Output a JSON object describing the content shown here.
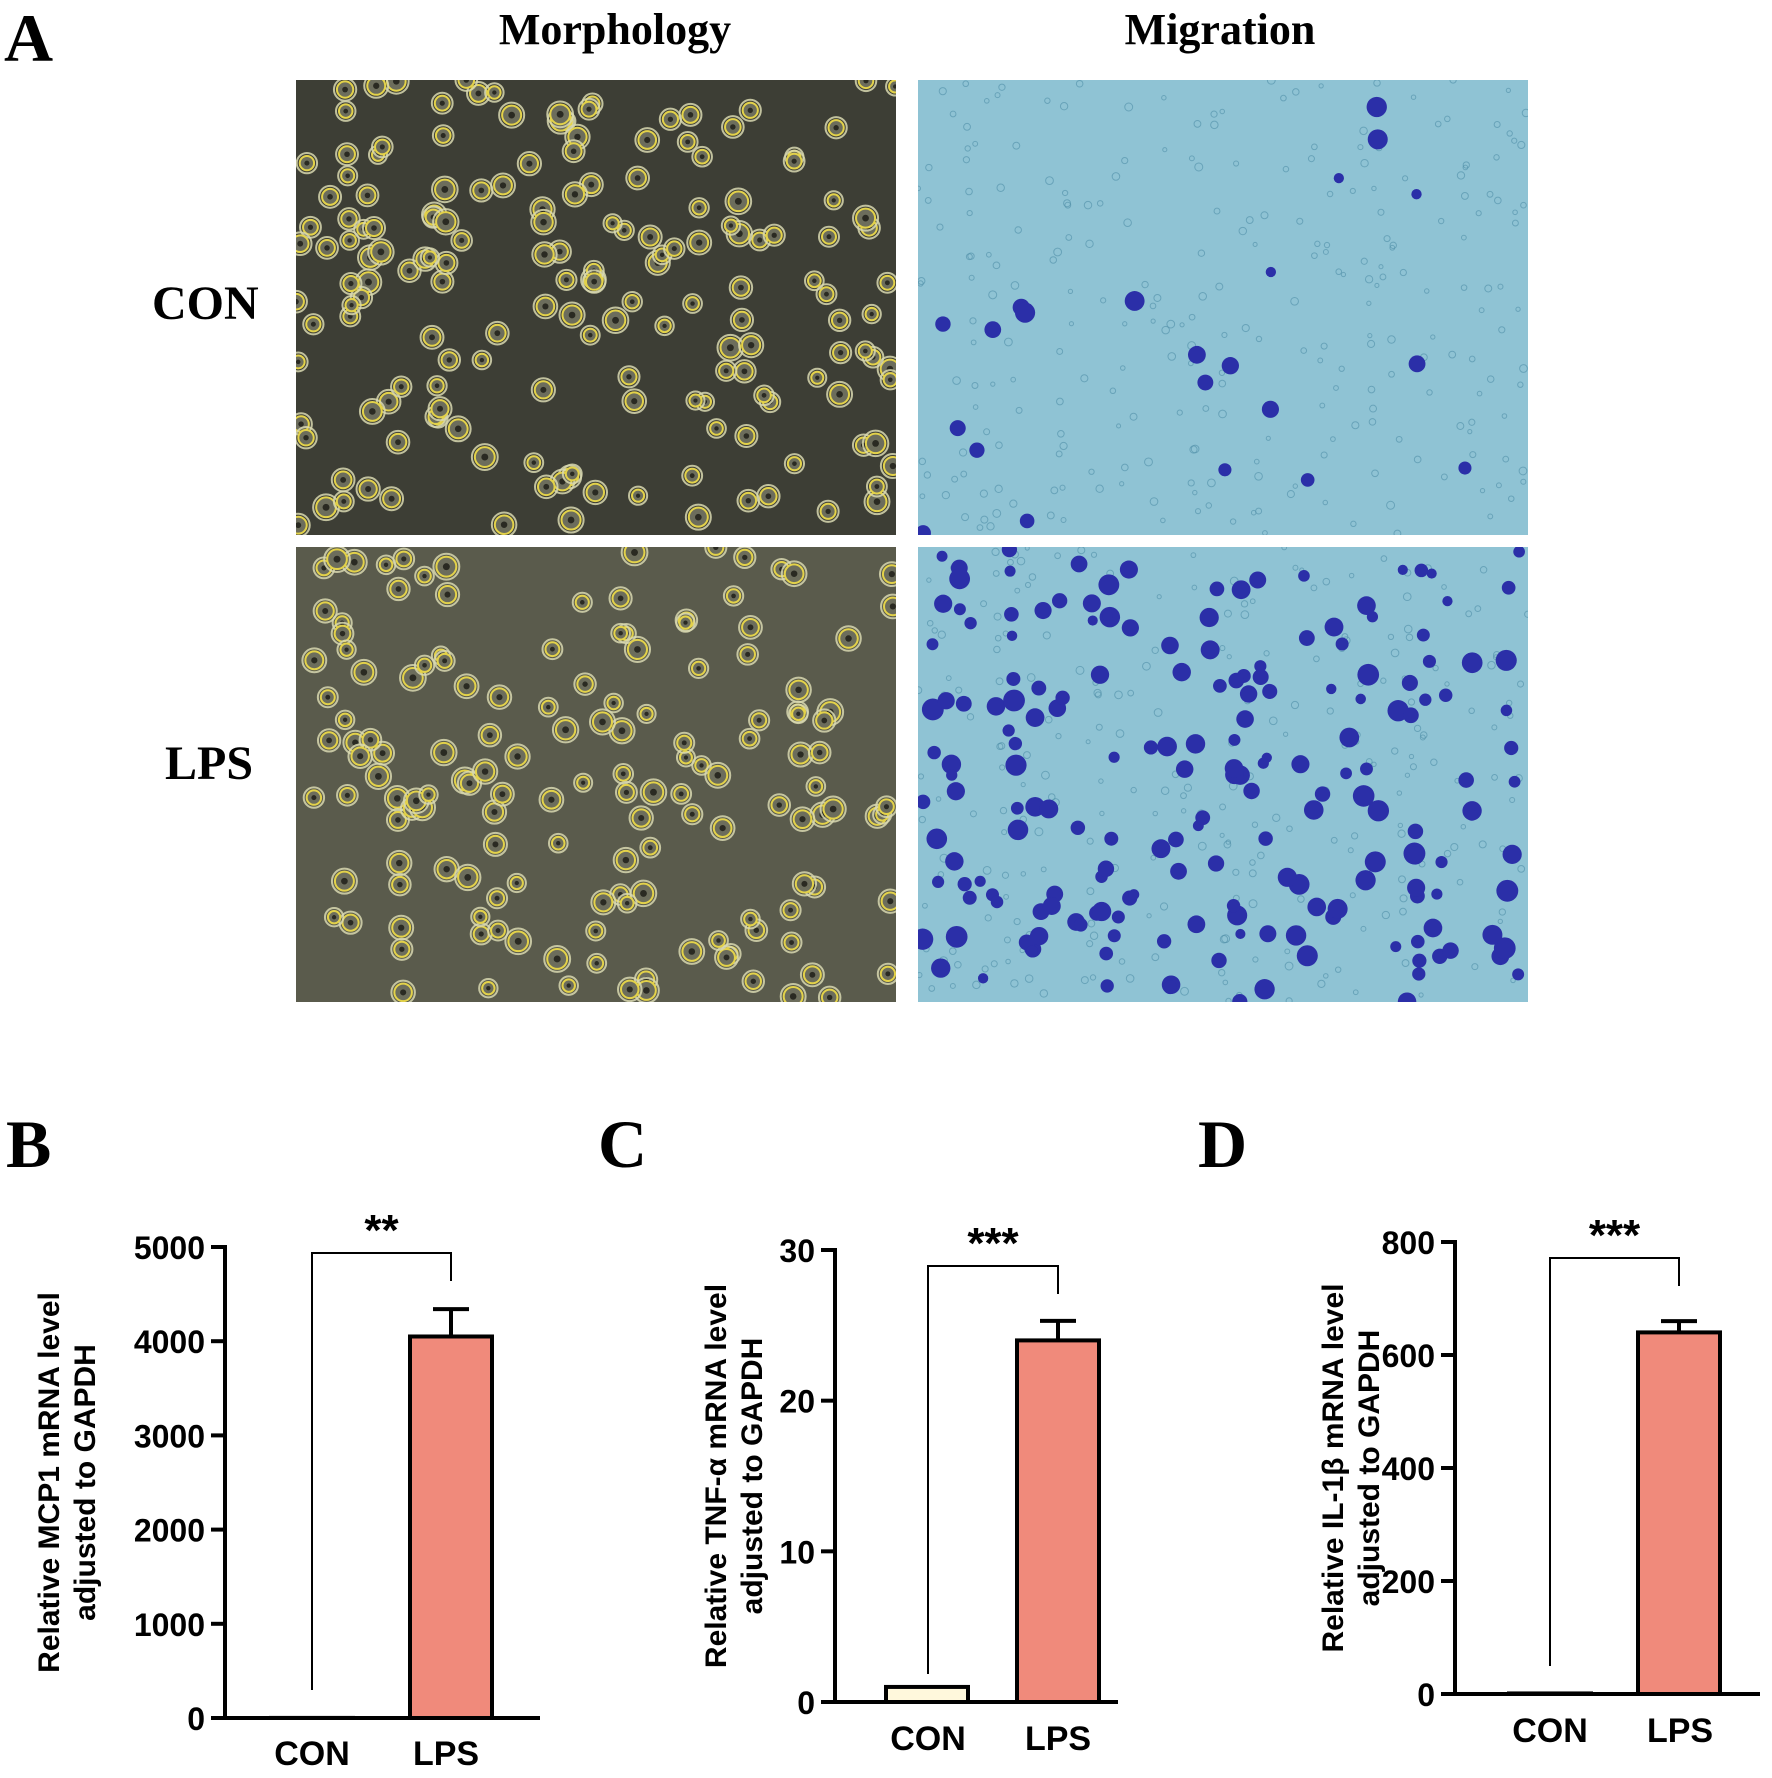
{
  "panels": {
    "a": {
      "letter": "A",
      "col_titles": [
        "Morphology",
        "Migration"
      ],
      "row_labels": [
        "CON",
        "LPS"
      ]
    },
    "b": {
      "letter": "B"
    },
    "c": {
      "letter": "C"
    },
    "d": {
      "letter": "D"
    }
  },
  "colors": {
    "bar_con_c": "#fff8dc",
    "bar_lps": "#f08a7b",
    "morph_bg_con": "#3d3e35",
    "morph_bg_lps": "#5a5b4c",
    "migration_bg": "#8fc3d4",
    "stained_cell": "#2b2fa8"
  },
  "chart_data": [
    {
      "type": "bar",
      "panel": "B",
      "categories": [
        "CON",
        "LPS"
      ],
      "values": [
        1,
        4050
      ],
      "errors": [
        0,
        290
      ],
      "ylabel_line1": "Relative MCP1  mRNA level",
      "ylabel_line2": "adjusted to GAPDH",
      "ylim": [
        0,
        5000
      ],
      "yticks": [
        "0",
        "1000",
        "2000",
        "3000",
        "4000",
        "5000"
      ],
      "significance": "**"
    },
    {
      "type": "bar",
      "panel": "C",
      "categories": [
        "CON",
        "LPS"
      ],
      "values": [
        1,
        24
      ],
      "errors": [
        0,
        1.3
      ],
      "ylabel_line1": "Relative TNF-α  mRNA level",
      "ylabel_line2": "adjusted to GAPDH",
      "ylim": [
        0,
        30
      ],
      "yticks": [
        "0",
        "10",
        "20",
        "30"
      ],
      "significance": "***"
    },
    {
      "type": "bar",
      "panel": "D",
      "categories": [
        "CON",
        "LPS"
      ],
      "values": [
        1,
        640
      ],
      "errors": [
        0,
        20
      ],
      "ylabel_line1": "Relative IL-1β  mRNA level",
      "ylabel_line2": "adjusted to GAPDH",
      "ylim": [
        0,
        800
      ],
      "yticks": [
        "0",
        "200",
        "400",
        "600",
        "800"
      ],
      "significance": "***"
    }
  ]
}
